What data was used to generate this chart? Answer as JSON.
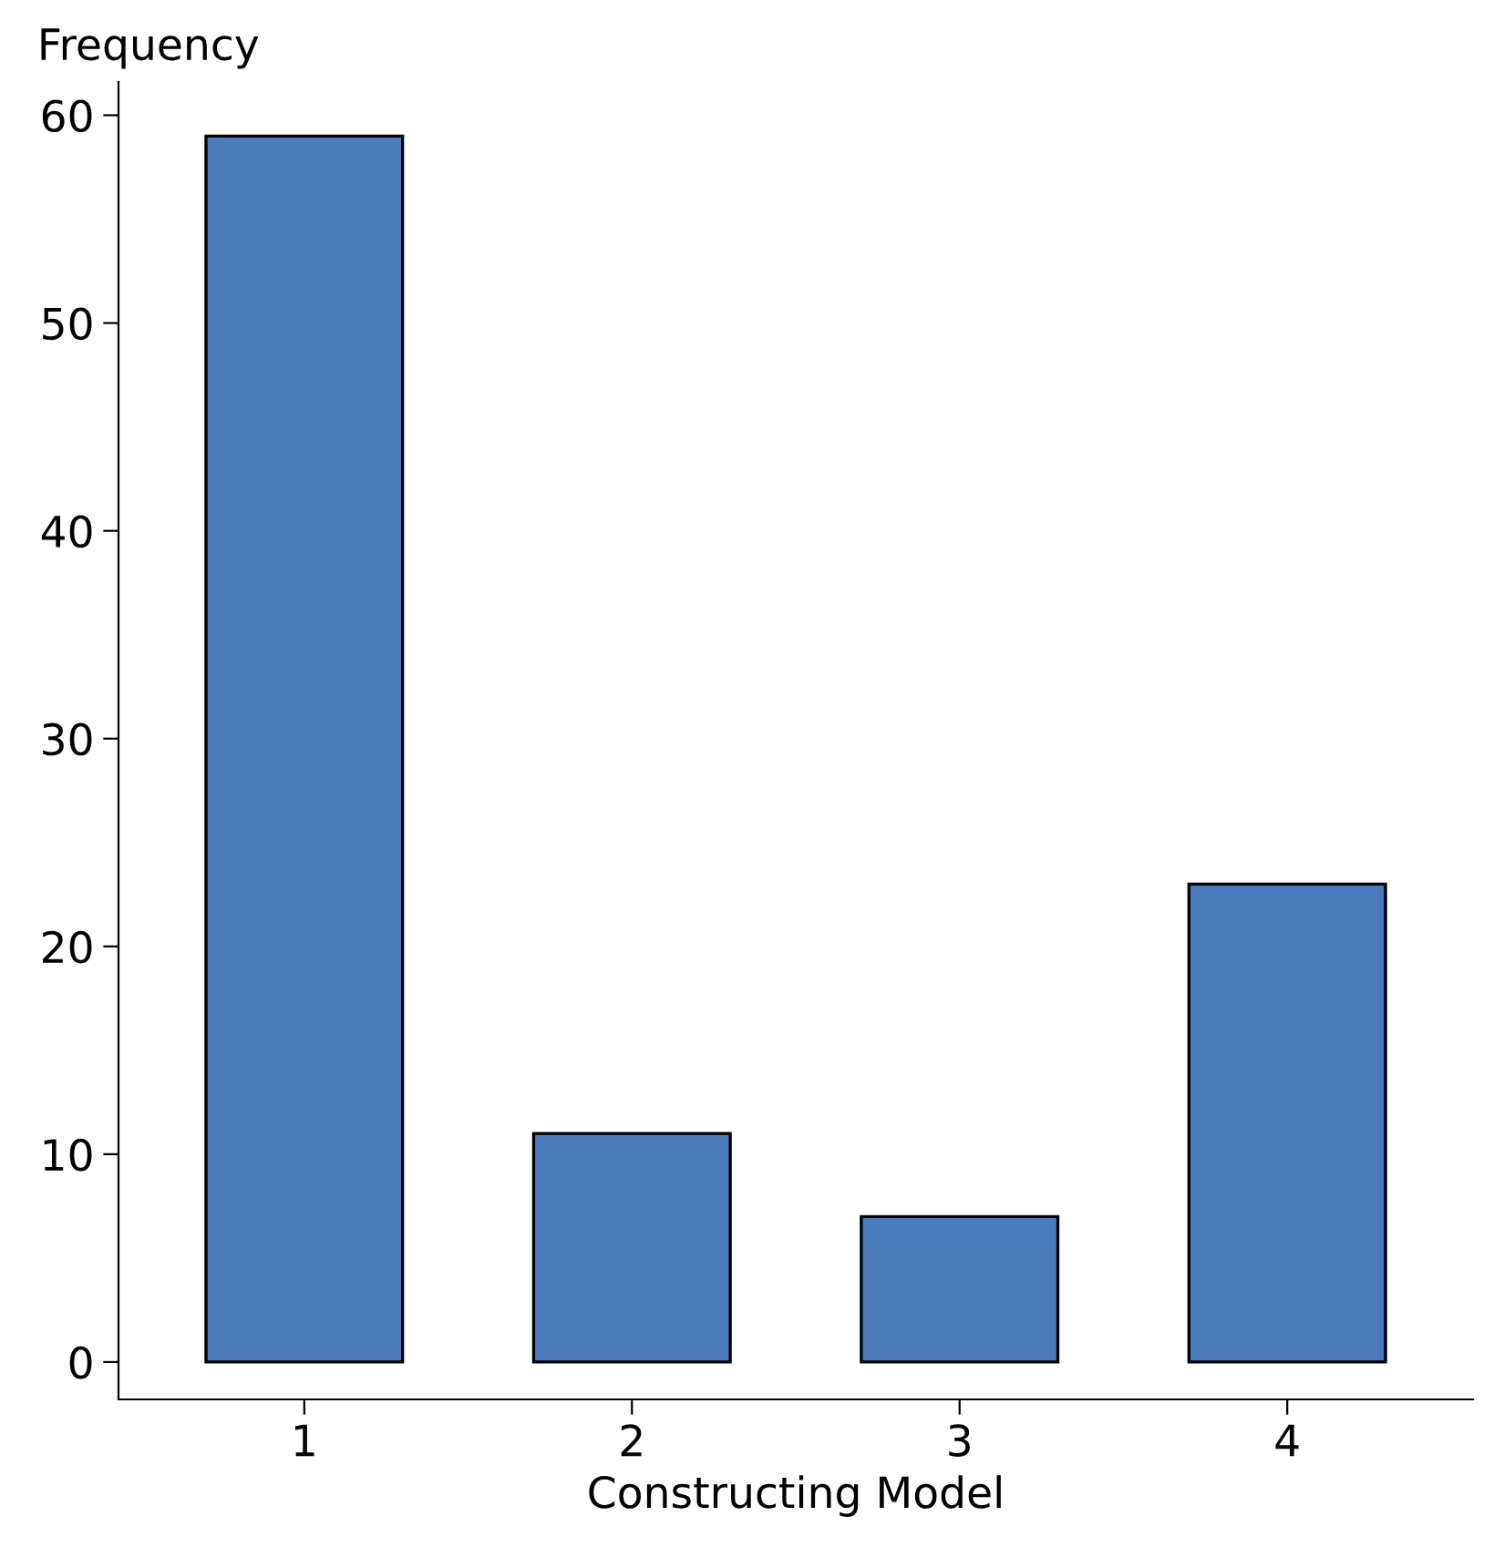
{
  "chart_data": {
    "type": "bar",
    "xlabel": "Constructing Model",
    "ylabel": "Frequency",
    "categories": [
      "1",
      "2",
      "3",
      "4"
    ],
    "values": [
      59,
      11,
      7,
      23
    ],
    "color": "#4a7bbf",
    "ylim": [
      -1.8,
      61.6
    ],
    "yticks": [
      0,
      10,
      20,
      30,
      40,
      50,
      60
    ],
    "grid": false,
    "legend": false
  }
}
